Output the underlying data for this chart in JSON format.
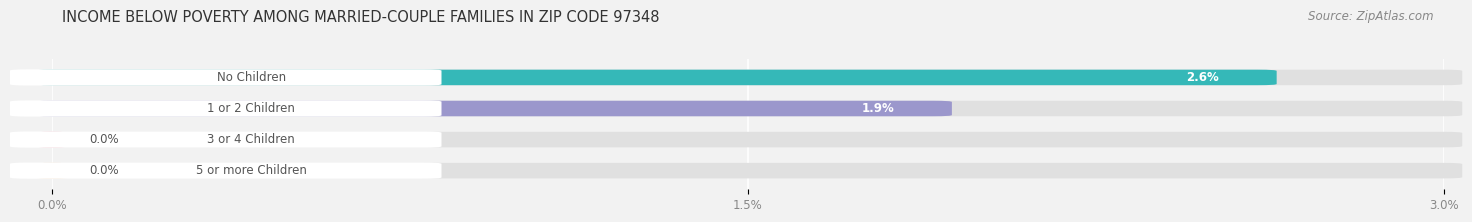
{
  "title": "INCOME BELOW POVERTY AMONG MARRIED-COUPLE FAMILIES IN ZIP CODE 97348",
  "source": "Source: ZipAtlas.com",
  "categories": [
    "No Children",
    "1 or 2 Children",
    "3 or 4 Children",
    "5 or more Children"
  ],
  "values": [
    2.6,
    1.9,
    0.0,
    0.0
  ],
  "bar_colors": [
    "#35b8b8",
    "#9b97cc",
    "#f089a0",
    "#f5c898"
  ],
  "value_labels": [
    "2.6%",
    "1.9%",
    "0.0%",
    "0.0%"
  ],
  "xlim": [
    0,
    3.0
  ],
  "xticks": [
    0.0,
    1.5,
    3.0
  ],
  "xticklabels": [
    "0.0%",
    "1.5%",
    "3.0%"
  ],
  "title_fontsize": 10.5,
  "source_fontsize": 8.5,
  "bar_label_fontsize": 8.5,
  "value_label_fontsize": 8.5,
  "tick_fontsize": 8.5,
  "background_color": "#f2f2f2",
  "bar_background_color": "#e0e0e0",
  "bar_height": 0.42,
  "bar_spacing": 1.0,
  "label_box_color": "#ffffff",
  "label_text_color": "#555555"
}
